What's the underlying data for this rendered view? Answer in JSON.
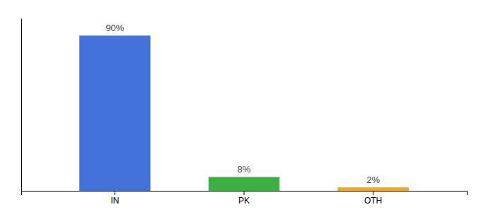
{
  "chart_data": {
    "type": "bar",
    "categories": [
      "IN",
      "PK",
      "OTH"
    ],
    "values": [
      90,
      8,
      2
    ],
    "value_labels": [
      "90%",
      "8%",
      "2%"
    ],
    "colors": [
      "#4472db",
      "#3cb043",
      "#f5a623"
    ],
    "ylim": [
      0,
      100
    ],
    "data_labels": true,
    "tick_labels": "x"
  }
}
